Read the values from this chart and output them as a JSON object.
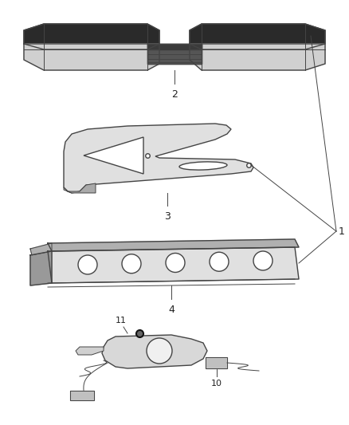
{
  "background_color": "#ffffff",
  "figsize": [
    4.38,
    5.33
  ],
  "dpi": 100,
  "line_color": "#444444",
  "text_color": "#222222",
  "fill_light": "#e8e8e8",
  "fill_mid": "#c0c0c0",
  "fill_dark": "#888888",
  "fill_darker": "#555555"
}
